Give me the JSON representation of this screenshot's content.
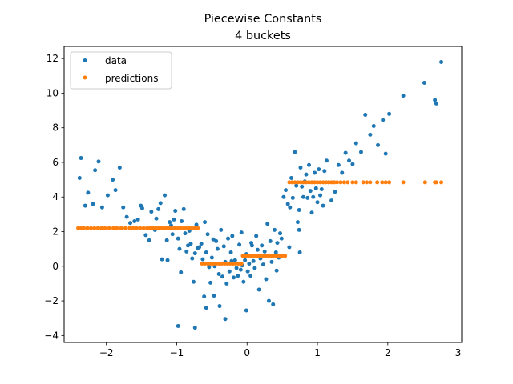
{
  "chart_data": {
    "type": "scatter",
    "title": "Piecewise Constants",
    "subtitle": "4 buckets",
    "xlabel": "",
    "ylabel": "",
    "xlim": [
      -2.6,
      3.05
    ],
    "ylim": [
      -4.4,
      12.7
    ],
    "xticks": [
      -2,
      -1,
      0,
      1,
      2,
      3
    ],
    "yticks": [
      -4,
      -2,
      0,
      2,
      4,
      6,
      8,
      10,
      12
    ],
    "grid": false,
    "legend_position": "top-left",
    "series": [
      {
        "name": "data",
        "color": "#1f77b4",
        "points": [
          [
            -2.38,
            5.1
          ],
          [
            -2.36,
            6.25
          ],
          [
            -2.3,
            3.5
          ],
          [
            -2.26,
            4.25
          ],
          [
            -2.19,
            3.6
          ],
          [
            -2.16,
            5.55
          ],
          [
            -2.11,
            6.05
          ],
          [
            -2.06,
            3.4
          ],
          [
            -1.98,
            4.1
          ],
          [
            -1.91,
            5.0
          ],
          [
            -1.87,
            4.4
          ],
          [
            -1.81,
            5.7
          ],
          [
            -1.76,
            3.4
          ],
          [
            -1.71,
            2.85
          ],
          [
            -1.66,
            2.5
          ],
          [
            -1.6,
            2.6
          ],
          [
            -1.55,
            2.7
          ],
          [
            -1.51,
            3.5
          ],
          [
            -1.49,
            3.35
          ],
          [
            -1.44,
            1.8
          ],
          [
            -1.39,
            1.5
          ],
          [
            -1.36,
            3.15
          ],
          [
            -1.31,
            2.1
          ],
          [
            -1.29,
            2.75
          ],
          [
            -1.26,
            3.3
          ],
          [
            -1.23,
            3.65
          ],
          [
            -1.21,
            0.4
          ],
          [
            -1.17,
            4.1
          ],
          [
            -1.14,
            1.5
          ],
          [
            -1.13,
            0.35
          ],
          [
            -1.1,
            2.55
          ],
          [
            -1.08,
            2.35
          ],
          [
            -1.06,
            1.85
          ],
          [
            -1.04,
            2.7
          ],
          [
            -1.02,
            3.2
          ],
          [
            -0.98,
            1.6
          ],
          [
            -0.96,
            1.0
          ],
          [
            -0.94,
            -0.35
          ],
          [
            -0.93,
            2.6
          ],
          [
            -0.9,
            3.3
          ],
          [
            -0.88,
            1.9
          ],
          [
            -0.86,
            0.85
          ],
          [
            -0.84,
            1.2
          ],
          [
            -0.82,
            2.05
          ],
          [
            -0.8,
            1.3
          ],
          [
            -0.78,
            0.45
          ],
          [
            -0.76,
            -0.9
          ],
          [
            -0.74,
            0.75
          ],
          [
            -0.72,
            2.4
          ],
          [
            -0.7,
            1.05
          ],
          [
            -0.68,
            1.1
          ],
          [
            -0.65,
            1.3
          ],
          [
            -0.63,
            0.4
          ],
          [
            -0.6,
            2.55
          ],
          [
            -0.58,
            0.8
          ],
          [
            -0.56,
            1.85
          ],
          [
            -0.54,
            -0.05
          ],
          [
            -0.52,
            -0.95
          ],
          [
            -0.5,
            0.5
          ],
          [
            -0.48,
            1.55
          ],
          [
            -0.46,
            0.0
          ],
          [
            -0.44,
            1.45
          ],
          [
            -0.42,
            1.0
          ],
          [
            -0.4,
            -0.45
          ],
          [
            -0.39,
            -2.3
          ],
          [
            -0.37,
            2.1
          ],
          [
            -0.35,
            -0.6
          ],
          [
            -0.33,
            1.15
          ],
          [
            -0.31,
            0.25
          ],
          [
            -0.29,
            -1.0
          ],
          [
            -0.27,
            1.6
          ],
          [
            -0.25,
            -0.3
          ],
          [
            -0.23,
            0.8
          ],
          [
            -0.21,
            1.75
          ],
          [
            -0.19,
            -0.65
          ],
          [
            -0.17,
            0.35
          ],
          [
            -0.15,
            -0.1
          ],
          [
            -0.13,
            -0.55
          ],
          [
            -0.11,
            1.25
          ],
          [
            -0.09,
            -0.2
          ],
          [
            -0.07,
            0.05
          ],
          [
            -0.05,
            -0.9
          ],
          [
            -0.03,
            0.35
          ],
          [
            -0.01,
            0.7
          ],
          [
            0.01,
            -0.3
          ],
          [
            0.03,
            0.15
          ],
          [
            0.05,
            -0.55
          ],
          [
            0.07,
            1.2
          ],
          [
            0.09,
            0.3
          ],
          [
            0.11,
            -0.1
          ],
          [
            0.13,
            1.75
          ],
          [
            0.15,
            0.95
          ],
          [
            0.17,
            -1.35
          ],
          [
            0.19,
            0.45
          ],
          [
            0.21,
            1.2
          ],
          [
            0.23,
            0.1
          ],
          [
            0.25,
            0.85
          ],
          [
            0.27,
            -0.75
          ],
          [
            0.29,
            2.45
          ],
          [
            0.31,
            -2.0
          ],
          [
            0.33,
            1.45
          ],
          [
            0.35,
            0.25
          ],
          [
            0.37,
            -2.2
          ],
          [
            0.39,
            2.1
          ],
          [
            0.41,
            0.8
          ],
          [
            0.43,
            1.35
          ],
          [
            0.45,
            0.5
          ],
          [
            0.47,
            1.9
          ],
          [
            0.49,
            1.6
          ],
          [
            0.52,
            4.0
          ],
          [
            0.55,
            4.4
          ],
          [
            0.58,
            3.6
          ],
          [
            0.61,
            3.4
          ],
          [
            0.63,
            5.1
          ],
          [
            0.65,
            3.95
          ],
          [
            0.68,
            6.6
          ],
          [
            0.7,
            4.65
          ],
          [
            0.72,
            2.55
          ],
          [
            0.74,
            3.25
          ],
          [
            0.76,
            5.7
          ],
          [
            0.78,
            4.6
          ],
          [
            0.8,
            4.0
          ],
          [
            0.82,
            4.9
          ],
          [
            0.84,
            5.3
          ],
          [
            0.86,
            3.95
          ],
          [
            0.88,
            5.85
          ],
          [
            0.9,
            4.35
          ],
          [
            0.92,
            3.1
          ],
          [
            0.94,
            4.0
          ],
          [
            0.96,
            5.4
          ],
          [
            0.98,
            4.5
          ],
          [
            1.0,
            3.7
          ],
          [
            1.02,
            5.6
          ],
          [
            1.04,
            4.1
          ],
          [
            1.06,
            4.45
          ],
          [
            1.08,
            3.5
          ],
          [
            1.1,
            5.5
          ],
          [
            1.13,
            6.1
          ],
          [
            1.16,
            4.85
          ],
          [
            1.2,
            3.8
          ],
          [
            1.25,
            4.3
          ],
          [
            1.3,
            5.85
          ],
          [
            1.35,
            5.4
          ],
          [
            1.4,
            6.55
          ],
          [
            1.45,
            6.1
          ],
          [
            1.5,
            5.9
          ],
          [
            1.55,
            7.1
          ],
          [
            1.62,
            6.6
          ],
          [
            1.68,
            8.75
          ],
          [
            1.75,
            7.6
          ],
          [
            1.8,
            8.1
          ],
          [
            1.86,
            7.0
          ],
          [
            1.93,
            8.45
          ],
          [
            1.97,
            6.5
          ],
          [
            2.02,
            8.8
          ],
          [
            2.22,
            9.85
          ],
          [
            2.52,
            10.6
          ],
          [
            2.67,
            9.6
          ],
          [
            2.69,
            9.4
          ],
          [
            2.76,
            11.8
          ],
          [
            -0.01,
            -2.55
          ],
          [
            -0.22,
            0.3
          ],
          [
            -0.08,
            1.95
          ],
          [
            0.06,
            1.35
          ],
          [
            0.42,
            -0.25
          ],
          [
            -0.47,
            -1.7
          ],
          [
            -0.61,
            -1.75
          ],
          [
            -0.98,
            -3.45
          ],
          [
            -0.74,
            -3.55
          ],
          [
            -0.31,
            -3.05
          ],
          [
            -0.58,
            -2.4
          ],
          [
            0.6,
            1.1
          ],
          [
            0.74,
            2.1
          ],
          [
            0.75,
            0.8
          ]
        ]
      },
      {
        "name": "predictions",
        "color": "#ff7f0e",
        "points": [
          [
            -2.4,
            2.2
          ],
          [
            -2.36,
            2.2
          ],
          [
            -2.32,
            2.2
          ],
          [
            -2.27,
            2.2
          ],
          [
            -2.22,
            2.2
          ],
          [
            -2.17,
            2.2
          ],
          [
            -2.12,
            2.2
          ],
          [
            -2.07,
            2.2
          ],
          [
            -2.02,
            2.2
          ],
          [
            -1.96,
            2.2
          ],
          [
            -1.9,
            2.2
          ],
          [
            -1.85,
            2.2
          ],
          [
            -1.79,
            2.2
          ],
          [
            -1.73,
            2.2
          ],
          [
            -1.67,
            2.2
          ],
          [
            -1.62,
            2.2
          ],
          [
            -1.57,
            2.2
          ],
          [
            -1.52,
            2.2
          ],
          [
            -1.47,
            2.2
          ],
          [
            -1.42,
            2.2
          ],
          [
            -1.38,
            2.2
          ],
          [
            -1.34,
            2.2
          ],
          [
            -1.3,
            2.2
          ],
          [
            -1.26,
            2.2
          ],
          [
            -1.22,
            2.2
          ],
          [
            -1.18,
            2.2
          ],
          [
            -1.14,
            2.2
          ],
          [
            -1.1,
            2.2
          ],
          [
            -1.06,
            2.2
          ],
          [
            -1.02,
            2.2
          ],
          [
            -0.98,
            2.2
          ],
          [
            -0.94,
            2.2
          ],
          [
            -0.9,
            2.2
          ],
          [
            -0.86,
            2.2
          ],
          [
            -0.82,
            2.2
          ],
          [
            -0.78,
            2.2
          ],
          [
            -0.74,
            2.2
          ],
          [
            -0.7,
            2.2
          ],
          [
            -0.64,
            0.15
          ],
          [
            -0.6,
            0.15
          ],
          [
            -0.56,
            0.15
          ],
          [
            -0.52,
            0.15
          ],
          [
            -0.48,
            0.15
          ],
          [
            -0.44,
            0.15
          ],
          [
            -0.4,
            0.15
          ],
          [
            -0.36,
            0.15
          ],
          [
            -0.32,
            0.15
          ],
          [
            -0.28,
            0.15
          ],
          [
            -0.24,
            0.15
          ],
          [
            -0.2,
            0.15
          ],
          [
            -0.16,
            0.15
          ],
          [
            -0.12,
            0.15
          ],
          [
            -0.08,
            0.15
          ],
          [
            -0.06,
            0.6
          ],
          [
            -0.02,
            0.6
          ],
          [
            0.02,
            0.6
          ],
          [
            0.06,
            0.6
          ],
          [
            0.1,
            0.6
          ],
          [
            0.14,
            0.6
          ],
          [
            0.18,
            0.6
          ],
          [
            0.22,
            0.6
          ],
          [
            0.26,
            0.6
          ],
          [
            0.3,
            0.6
          ],
          [
            0.34,
            0.6
          ],
          [
            0.38,
            0.6
          ],
          [
            0.42,
            0.6
          ],
          [
            0.46,
            0.6
          ],
          [
            0.5,
            0.6
          ],
          [
            0.54,
            0.6
          ],
          [
            0.6,
            4.85
          ],
          [
            0.64,
            4.85
          ],
          [
            0.68,
            4.85
          ],
          [
            0.72,
            4.85
          ],
          [
            0.76,
            4.85
          ],
          [
            0.8,
            4.85
          ],
          [
            0.84,
            4.85
          ],
          [
            0.88,
            4.85
          ],
          [
            0.92,
            4.85
          ],
          [
            0.96,
            4.85
          ],
          [
            1.0,
            4.85
          ],
          [
            1.04,
            4.85
          ],
          [
            1.08,
            4.85
          ],
          [
            1.12,
            4.85
          ],
          [
            1.16,
            4.85
          ],
          [
            1.2,
            4.85
          ],
          [
            1.24,
            4.85
          ],
          [
            1.28,
            4.85
          ],
          [
            1.33,
            4.85
          ],
          [
            1.38,
            4.85
          ],
          [
            1.43,
            4.85
          ],
          [
            1.5,
            4.85
          ],
          [
            1.55,
            4.85
          ],
          [
            1.65,
            4.85
          ],
          [
            1.7,
            4.85
          ],
          [
            1.75,
            4.85
          ],
          [
            1.85,
            4.85
          ],
          [
            1.92,
            4.85
          ],
          [
            1.97,
            4.85
          ],
          [
            2.02,
            4.85
          ],
          [
            2.22,
            4.85
          ],
          [
            2.53,
            4.85
          ],
          [
            2.67,
            4.85
          ],
          [
            2.69,
            4.85
          ],
          [
            2.76,
            4.85
          ]
        ]
      }
    ]
  }
}
